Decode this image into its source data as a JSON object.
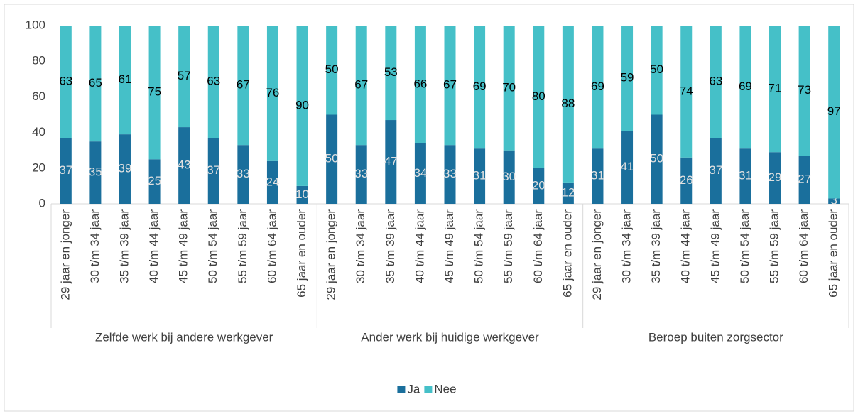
{
  "chart_data": {
    "type": "stacked_bar",
    "groups": [
      {
        "name": "Zelfde werk bij andere werkgever",
        "categories": [
          "29 jaar en jonger",
          "30 t/m 34 jaar",
          "35 t/m 39 jaar",
          "40 t/m 44 jaar",
          "45 t/m 49 jaar",
          "50 t/m 54 jaar",
          "55 t/m 59 jaar",
          "60 t/m 64 jaar",
          "65 jaar en ouder"
        ]
      },
      {
        "name": "Ander werk bij huidige werkgever",
        "categories": [
          "29 jaar en jonger",
          "30 t/m 34 jaar",
          "35 t/m 39 jaar",
          "40 t/m 44 jaar",
          "45 t/m 49 jaar",
          "50 t/m 54 jaar",
          "55 t/m 59 jaar",
          "60 t/m 64 jaar",
          "65 jaar en ouder"
        ]
      },
      {
        "name": "Beroep buiten zorgsector",
        "categories": [
          "29 jaar en jonger",
          "30 t/m 34 jaar",
          "35 t/m 39 jaar",
          "40 t/m 44 jaar",
          "45 t/m 49 jaar",
          "50 t/m 54 jaar",
          "55 t/m 59 jaar",
          "60 t/m 64 jaar",
          "65 jaar en ouder"
        ]
      }
    ],
    "series": [
      {
        "name": "Ja",
        "color": "#1a6f9c",
        "label_color": "#e0e0e0",
        "values": [
          37,
          35,
          39,
          25,
          43,
          37,
          33,
          24,
          10,
          50,
          33,
          47,
          34,
          33,
          31,
          30,
          20,
          12,
          31,
          41,
          50,
          26,
          37,
          31,
          29,
          27,
          3
        ]
      },
      {
        "name": "Nee",
        "color": "#45c0c8",
        "label_color": "#000000",
        "values": [
          63,
          65,
          61,
          75,
          57,
          63,
          67,
          76,
          90,
          50,
          67,
          53,
          66,
          67,
          69,
          70,
          80,
          88,
          69,
          59,
          50,
          74,
          63,
          69,
          71,
          73,
          97
        ]
      }
    ],
    "ylim": [
      0,
      100
    ],
    "yticks": [
      0,
      20,
      40,
      60,
      80,
      100
    ],
    "legend": "bottom"
  }
}
